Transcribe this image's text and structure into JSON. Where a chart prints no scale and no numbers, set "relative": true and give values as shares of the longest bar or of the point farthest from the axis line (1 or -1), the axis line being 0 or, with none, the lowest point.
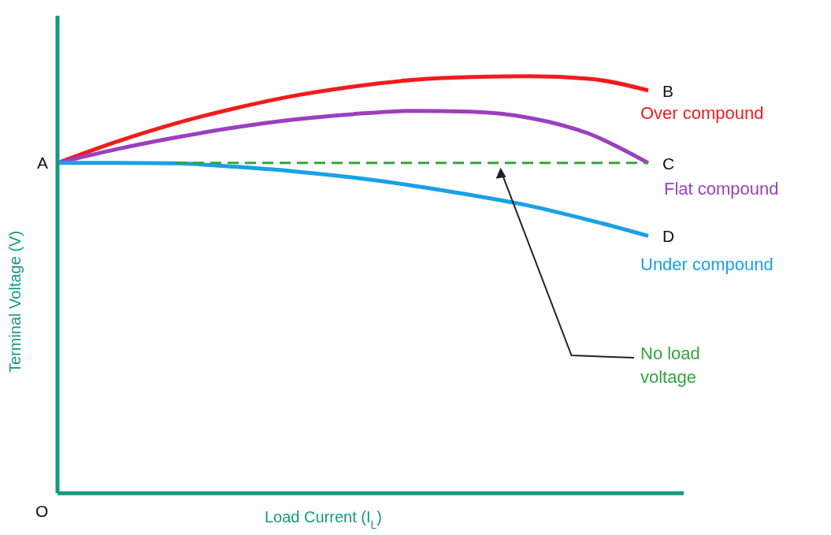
{
  "chart_data": {
    "type": "line",
    "relative": true,
    "xlabel": "Load Current (I$_{L}$)",
    "ylabel": "Terminal Voltage (V)",
    "categories": [
      null,
      null,
      null,
      null,
      null,
      null,
      null,
      null,
      null,
      null,
      null
    ],
    "series": [
      {
        "name": "Over compound",
        "color": "#f01c1c",
        "values": [
          0.792,
          0.843,
          0.887,
          0.923,
          0.953,
          0.975,
          0.991,
          0.998,
          1,
          0.994,
          0.966
        ]
      },
      {
        "name": "Flat compound",
        "color": "#9b3fbf",
        "values": [
          0.792,
          0.825,
          0.853,
          0.877,
          0.896,
          0.909,
          0.917,
          0.915,
          0.9,
          0.862,
          0.792
        ]
      },
      {
        "name": "Under compound",
        "color": "#1aa0e6",
        "values": [
          0.792,
          0.792,
          0.791,
          0.783,
          0.772,
          0.757,
          0.738,
          0.715,
          0.689,
          0.655,
          0.617
        ]
      },
      {
        "color": "#2ea83a",
        "line_style": "dashed",
        "values": [
          null,
          null,
          0.792,
          0.792,
          0.792,
          0.792,
          0.792,
          0.792,
          0.792,
          0.792,
          0.792
        ]
      }
    ],
    "annotations": [
      "A",
      "B",
      "C",
      "D",
      "O",
      "No load voltage"
    ],
    "grid": false,
    "legend": false,
    "marker": "none"
  }
}
